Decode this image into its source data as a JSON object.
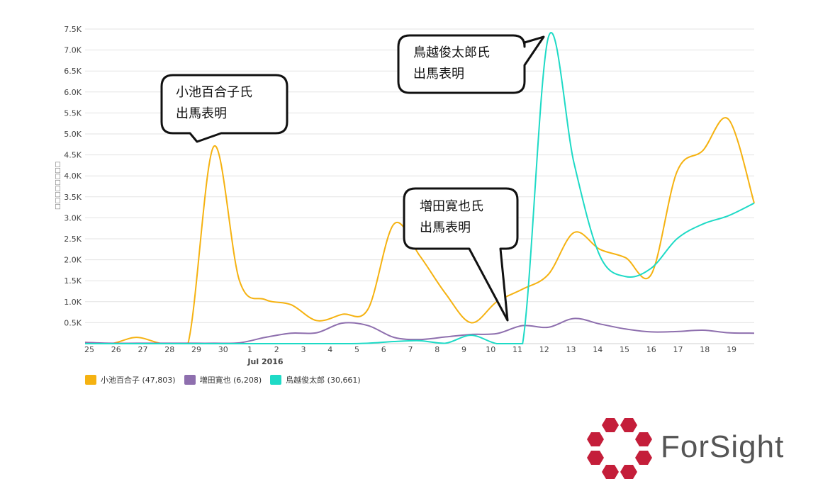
{
  "chart_data": {
    "type": "line",
    "title": "",
    "ylabel": "□□□□□□□□",
    "ylim": [
      0,
      7500
    ],
    "y_ticks": [
      "0.5K",
      "1.0K",
      "1.5K",
      "2.0K",
      "2.5K",
      "3.0K",
      "3.5K",
      "4.0K",
      "4.5K",
      "5.0K",
      "5.5K",
      "6.0K",
      "6.5K",
      "7.0K",
      "7.5K"
    ],
    "x_ticks": [
      "25",
      "26",
      "27",
      "28",
      "29",
      "30",
      "1",
      "2",
      "3",
      "4",
      "5",
      "6",
      "7",
      "8",
      "9",
      "10",
      "11",
      "12",
      "13",
      "14",
      "15",
      "16",
      "17",
      "18",
      "19"
    ],
    "x_sublabel": "Jul 2016",
    "grid": true,
    "legend_position": "bottom-left",
    "series": [
      {
        "name": "小池百合子 (47,803)",
        "color": "#F5B211",
        "values": [
          30,
          0,
          150,
          0,
          0,
          4700,
          1500,
          1050,
          930,
          550,
          700,
          830,
          2850,
          2100,
          1200,
          500,
          1000,
          1300,
          1650,
          2650,
          2250,
          2050,
          1650,
          4100,
          4600,
          5350,
          3350
        ]
      },
      {
        "name": "増田寛也 (6,208)",
        "color": "#8E6FAE",
        "values": [
          30,
          10,
          10,
          10,
          10,
          10,
          20,
          150,
          250,
          260,
          490,
          430,
          150,
          100,
          160,
          220,
          240,
          430,
          390,
          600,
          470,
          350,
          280,
          290,
          320,
          260,
          250
        ]
      },
      {
        "name": "鳥越俊太郎 (30,661)",
        "color": "#1EDAC6",
        "values": [
          0,
          0,
          0,
          0,
          0,
          0,
          0,
          0,
          0,
          0,
          0,
          10,
          50,
          70,
          10,
          200,
          0,
          0,
          7300,
          4300,
          2100,
          1600,
          1800,
          2500,
          2850,
          3050,
          3350
        ]
      }
    ],
    "annotations": [
      {
        "text": "小池百合子氏\n出馬表明"
      },
      {
        "text": "鳥越俊太郎氏\n出馬表明"
      },
      {
        "text": "増田寛也氏\n出馬表明"
      }
    ]
  },
  "logo": {
    "text": "ForSight",
    "color": "#C41E3A"
  }
}
